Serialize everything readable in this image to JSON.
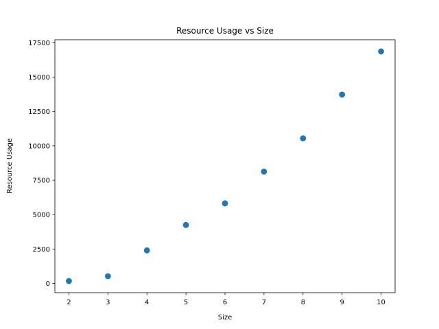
{
  "chart_data": {
    "type": "scatter",
    "title": "Resource Usage vs Size",
    "xlabel": "Size",
    "ylabel": "Resource Usage",
    "x": [
      2,
      3,
      4,
      5,
      6,
      7,
      8,
      9,
      10
    ],
    "y": [
      170,
      520,
      2400,
      4250,
      5820,
      8130,
      10550,
      13730,
      16870
    ],
    "xlim": [
      1.64,
      10.36
    ],
    "ylim": [
      -675,
      17720
    ],
    "xticks": [
      2,
      3,
      4,
      5,
      6,
      7,
      8,
      9,
      10
    ],
    "yticks": [
      0,
      2500,
      5000,
      7500,
      10000,
      12500,
      15000,
      17500
    ],
    "marker_color": "#1f77b4",
    "grid": false,
    "legend": false
  }
}
